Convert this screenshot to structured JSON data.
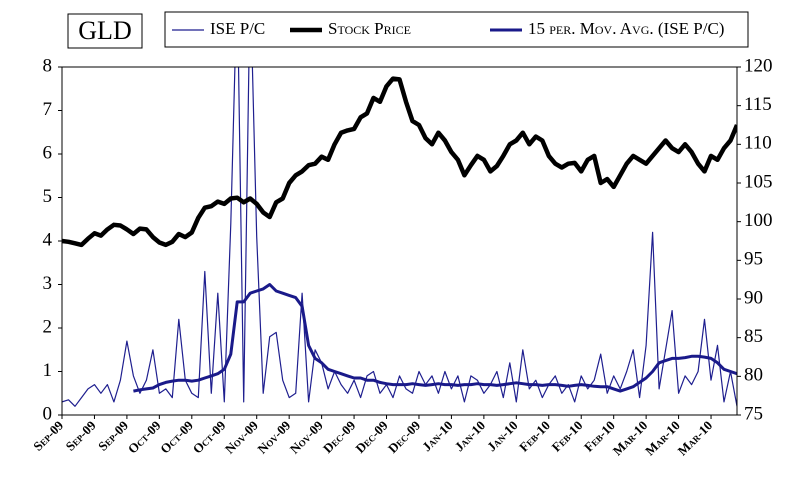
{
  "chart_data": {
    "type": "line",
    "title": "GLD",
    "categories": [
      "Sep-09",
      null,
      null,
      null,
      null,
      "Sep-09",
      null,
      null,
      null,
      null,
      "Sep-09",
      null,
      null,
      null,
      null,
      "Oct-09",
      null,
      null,
      null,
      null,
      "Oct-09",
      null,
      null,
      null,
      null,
      "Oct-09",
      null,
      null,
      null,
      null,
      "Nov-09",
      null,
      null,
      null,
      null,
      "Nov-09",
      null,
      null,
      null,
      null,
      "Nov-09",
      null,
      null,
      null,
      null,
      "Dec-09",
      null,
      null,
      null,
      null,
      "Dec-09",
      null,
      null,
      null,
      null,
      "Dec-09",
      null,
      null,
      null,
      null,
      "Jan-10",
      null,
      null,
      null,
      null,
      "Jan-10",
      null,
      null,
      null,
      null,
      "Jan-10",
      null,
      null,
      null,
      null,
      "Feb-10",
      null,
      null,
      null,
      null,
      "Feb-10",
      null,
      null,
      null,
      null,
      "Feb-10",
      null,
      null,
      null,
      null,
      "Mar-10",
      null,
      null,
      null,
      null,
      "Mar-10",
      null,
      null,
      null,
      null,
      "Mar-10",
      null,
      null,
      null,
      null
    ],
    "series": [
      {
        "name": "ISE P/C",
        "color": "#1f1f8f",
        "width": 1.2,
        "values": [
          0.3,
          0.35,
          0.2,
          0.4,
          0.6,
          0.7,
          0.5,
          0.7,
          0.3,
          0.8,
          1.7,
          0.9,
          0.5,
          0.8,
          1.5,
          0.5,
          0.6,
          0.4,
          2.2,
          0.8,
          0.5,
          0.4,
          3.3,
          0.5,
          2.8,
          0.3,
          4.4,
          10,
          0.3,
          10,
          4.1,
          0.5,
          1.8,
          1.9,
          0.8,
          0.4,
          0.5,
          2.8,
          0.3,
          1.5,
          1.2,
          0.6,
          1.0,
          0.7,
          0.5,
          0.8,
          0.4,
          0.9,
          1.0,
          0.5,
          0.7,
          0.4,
          0.9,
          0.6,
          0.5,
          1.0,
          0.7,
          0.9,
          0.5,
          1.0,
          0.6,
          0.9,
          0.3,
          0.9,
          0.8,
          0.5,
          0.7,
          1.0,
          0.4,
          1.2,
          0.3,
          1.5,
          0.6,
          0.8,
          0.4,
          0.7,
          0.9,
          0.5,
          0.7,
          0.3,
          0.9,
          0.6,
          0.8,
          1.4,
          0.5,
          0.9,
          0.6,
          1.0,
          1.5,
          0.4,
          1.6,
          4.2,
          0.6,
          1.5,
          2.4,
          0.5,
          0.9,
          0.7,
          1.0,
          2.2,
          0.8,
          1.6,
          0.3,
          1.0,
          0.2
        ]
      },
      {
        "name": "Stock Price",
        "color": "#000000",
        "width": 4.5,
        "axis": "y2",
        "values": [
          97.5,
          97.4,
          97.2,
          97.0,
          97.8,
          98.5,
          98.2,
          99.0,
          99.6,
          99.5,
          99.0,
          98.4,
          99.1,
          99.0,
          98.0,
          97.3,
          97.0,
          97.4,
          98.4,
          98.0,
          98.6,
          100.5,
          101.8,
          102.0,
          102.6,
          102.3,
          103.0,
          103.1,
          102.5,
          103.0,
          102.3,
          101.2,
          100.6,
          102.5,
          103.0,
          105.0,
          106.0,
          106.5,
          107.3,
          107.5,
          108.4,
          108.0,
          110.0,
          111.5,
          111.8,
          112.0,
          113.5,
          114.0,
          116.0,
          115.5,
          117.5,
          118.5,
          118.4,
          115.5,
          113.0,
          112.5,
          110.8,
          110.0,
          111.5,
          110.5,
          109.0,
          108.0,
          106.0,
          107.3,
          108.5,
          108.0,
          106.5,
          107.2,
          108.5,
          110.0,
          110.5,
          111.5,
          110.0,
          111.0,
          110.5,
          108.5,
          107.5,
          107.0,
          107.5,
          107.6,
          106.5,
          108.0,
          108.5,
          105.0,
          105.5,
          104.5,
          106.0,
          107.5,
          108.5,
          108.0,
          107.5,
          108.5,
          109.5,
          110.5,
          109.5,
          109.0,
          110.0,
          109.0,
          107.5,
          106.5,
          108.5,
          108.0,
          109.5,
          110.5,
          112.5
        ]
      },
      {
        "name": "15 per. Mov. Avg. (ISE P/C)",
        "color": "#1a1a8a",
        "width": 3,
        "values": [
          null,
          null,
          null,
          null,
          null,
          null,
          null,
          null,
          null,
          null,
          null,
          0.55,
          0.58,
          0.6,
          0.62,
          0.7,
          0.75,
          0.78,
          0.8,
          0.8,
          0.78,
          0.8,
          0.85,
          0.9,
          0.95,
          1.05,
          1.4,
          2.6,
          2.6,
          2.8,
          2.85,
          2.9,
          3.0,
          2.85,
          2.8,
          2.75,
          2.7,
          2.5,
          1.6,
          1.3,
          1.2,
          1.05,
          1.0,
          0.95,
          0.9,
          0.85,
          0.85,
          0.8,
          0.8,
          0.75,
          0.72,
          0.7,
          0.7,
          0.7,
          0.72,
          0.7,
          0.68,
          0.7,
          0.72,
          0.7,
          0.7,
          0.68,
          0.7,
          0.7,
          0.72,
          0.7,
          0.7,
          0.68,
          0.7,
          0.72,
          0.74,
          0.72,
          0.7,
          0.7,
          0.68,
          0.7,
          0.7,
          0.68,
          0.66,
          0.68,
          0.7,
          0.68,
          0.66,
          0.65,
          0.65,
          0.6,
          0.55,
          0.6,
          0.65,
          0.75,
          0.85,
          1.0,
          1.2,
          1.25,
          1.3,
          1.3,
          1.32,
          1.35,
          1.35,
          1.33,
          1.3,
          1.2,
          1.05,
          1.0,
          0.95
        ]
      }
    ],
    "ylim": [
      0,
      8
    ],
    "yticks": [
      0,
      1,
      2,
      3,
      4,
      5,
      6,
      7,
      8
    ],
    "y2lim": [
      75,
      120
    ],
    "y2ticks": [
      75,
      80,
      85,
      90,
      95,
      100,
      105,
      110,
      115,
      120
    ],
    "legend": "top"
  }
}
